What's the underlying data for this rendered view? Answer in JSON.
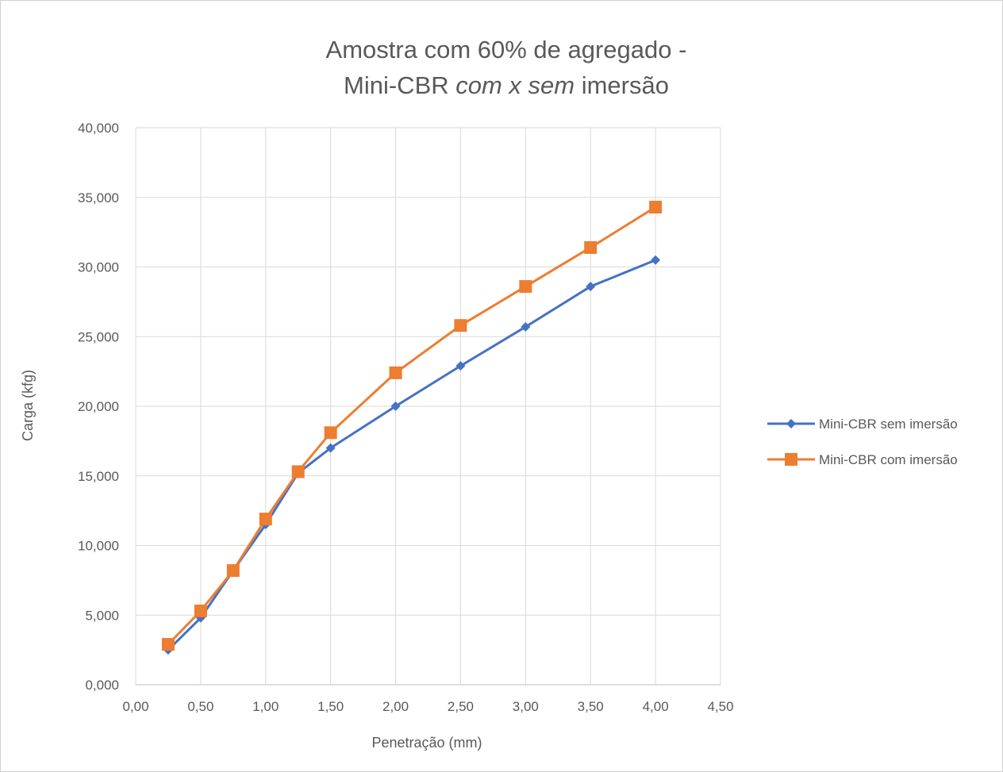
{
  "chart_data": {
    "type": "line",
    "title_line1": "Amostra com 60% de agregado -",
    "title_line2_pre": "Mini-CBR ",
    "title_line2_italic": "com x sem",
    "title_line2_post": " imersão",
    "xlabel": "Penetração (mm)",
    "ylabel": "Carga (kfg)",
    "xlim": [
      0,
      4.5
    ],
    "ylim": [
      0,
      40
    ],
    "x_ticks": [
      "0,00",
      "0,50",
      "1,00",
      "1,50",
      "2,00",
      "2,50",
      "3,00",
      "3,50",
      "4,00",
      "4,50"
    ],
    "y_ticks": [
      "0,000",
      "5,000",
      "10,000",
      "15,000",
      "20,000",
      "25,000",
      "30,000",
      "35,000",
      "40,000"
    ],
    "grid": true,
    "legend_position": "right",
    "series": [
      {
        "name": "Mini-CBR sem imersão",
        "color": "#4472C4",
        "marker": "diamond",
        "x": [
          0.25,
          0.5,
          0.75,
          1.0,
          1.25,
          1.5,
          2.0,
          2.5,
          3.0,
          3.5,
          4.0
        ],
        "y": [
          2.5,
          4.8,
          8.2,
          11.5,
          15.2,
          17.0,
          20.0,
          22.9,
          25.7,
          28.6,
          30.5
        ]
      },
      {
        "name": "Mini-CBR com imersão",
        "color": "#ED7D31",
        "marker": "square",
        "x": [
          0.25,
          0.5,
          0.75,
          1.0,
          1.25,
          1.5,
          2.0,
          2.5,
          3.0,
          3.5,
          4.0
        ],
        "y": [
          2.9,
          5.3,
          8.2,
          11.9,
          15.3,
          18.1,
          22.4,
          25.8,
          28.6,
          31.4,
          34.3
        ]
      }
    ]
  }
}
